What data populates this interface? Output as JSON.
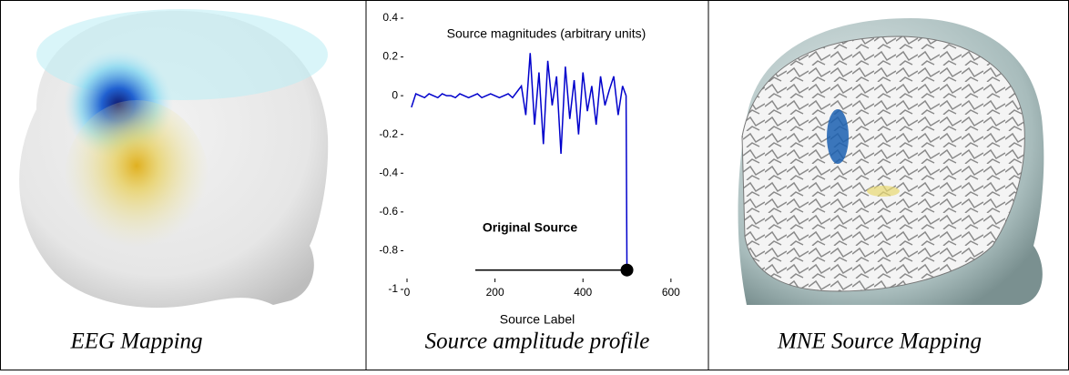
{
  "panels": [
    {
      "caption": "EEG Mapping"
    },
    {
      "caption": "Source amplitude profile"
    },
    {
      "caption": "MNE Source Mapping"
    }
  ],
  "chart_data": {
    "type": "line",
    "title": "Source magnitudes (arbitrary units)",
    "x_label": "Source Label",
    "annotation": "Original Source",
    "x": [
      10,
      20,
      30,
      40,
      50,
      60,
      70,
      80,
      90,
      100,
      110,
      120,
      130,
      140,
      150,
      160,
      170,
      180,
      190,
      200,
      210,
      220,
      230,
      240,
      250,
      260,
      270,
      280,
      290,
      300,
      310,
      320,
      330,
      340,
      350,
      360,
      370,
      380,
      390,
      400,
      410,
      420,
      430,
      440,
      450,
      460,
      470,
      480,
      490,
      498,
      500
    ],
    "series": [
      {
        "color": "#0000cc",
        "values": [
          -0.06,
          0.01,
          0.0,
          -0.01,
          0.01,
          0.0,
          -0.01,
          0.01,
          0.0,
          0.0,
          -0.01,
          0.01,
          0.0,
          -0.01,
          0.0,
          0.01,
          -0.01,
          0.0,
          0.01,
          0.0,
          -0.01,
          0.0,
          0.01,
          -0.01,
          0.02,
          0.05,
          -0.1,
          0.22,
          -0.15,
          0.12,
          -0.25,
          0.18,
          -0.05,
          0.1,
          -0.3,
          0.15,
          -0.12,
          0.08,
          -0.2,
          0.12,
          -0.08,
          0.05,
          -0.15,
          0.1,
          -0.05,
          0.03,
          0.1,
          -0.1,
          0.05,
          0.0,
          -0.9
        ]
      }
    ],
    "xlim": [
      0,
      650
    ],
    "ylim": [
      -1,
      0.4
    ],
    "xticks": [
      0,
      200,
      400,
      600
    ],
    "yticks": [
      0.4,
      0.2,
      0,
      -0.2,
      -0.4,
      -0.6,
      -0.8,
      -1
    ]
  }
}
